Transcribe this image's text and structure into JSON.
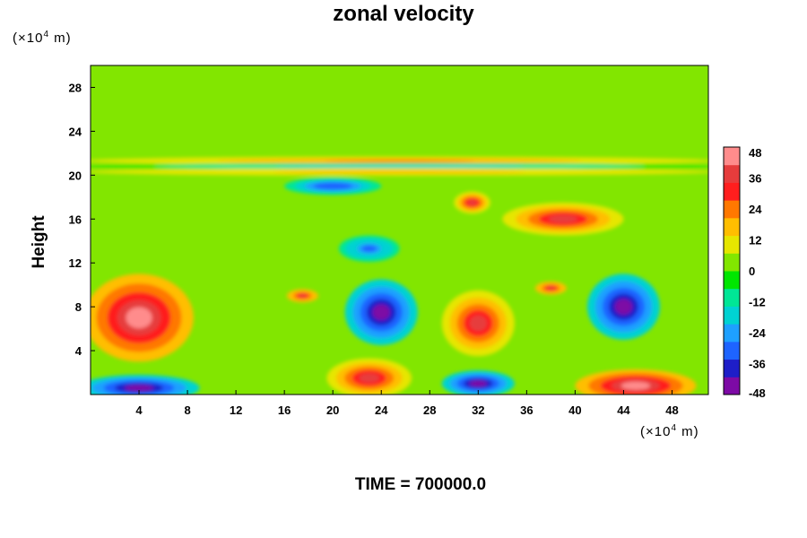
{
  "figure": {
    "title": "zonal velocity",
    "y_unit": {
      "prefix": "(×10",
      "exp": "4",
      "suffix": " m)"
    },
    "x_unit": {
      "prefix": "(×10",
      "exp": "4",
      "suffix": " m)"
    },
    "footer": "TIME = 700000.0"
  },
  "chart_data": {
    "type": "heatmap",
    "title": "zonal velocity",
    "ylabel": "Height",
    "xlabel": "",
    "xlim": [
      0,
      51
    ],
    "ylim": [
      0,
      30
    ],
    "x_ticks": [
      4,
      8,
      12,
      16,
      20,
      24,
      28,
      32,
      36,
      40,
      44,
      48
    ],
    "y_ticks": [
      4,
      8,
      12,
      16,
      20,
      24,
      28
    ],
    "colorbar": {
      "min": -48,
      "max": 48,
      "ticks": [
        48,
        36,
        24,
        12,
        0,
        -12,
        -24,
        -36,
        -48
      ],
      "colors": [
        "#7d0aa5",
        "#1e1ec8",
        "#1e64ff",
        "#1ea0ff",
        "#00d2d2",
        "#00e696",
        "#00e600",
        "#82e600",
        "#e6e600",
        "#ffbe00",
        "#ff7800",
        "#ff1e1e",
        "#e63c3c",
        "#ff8c8c"
      ]
    },
    "background_value": 0,
    "features": [
      {
        "label": "westerly upper band",
        "x": 25.5,
        "y": 21.3,
        "rx": 26,
        "ry": 0.4,
        "value": 22
      },
      {
        "label": "easterly band",
        "x": 25.5,
        "y": 20.8,
        "rx": 26,
        "ry": 0.3,
        "value": -18
      },
      {
        "label": "westerly band",
        "x": 25.5,
        "y": 20.3,
        "rx": 26,
        "ry": 0.35,
        "value": 20
      },
      {
        "label": "jet upper",
        "x": 39,
        "y": 16,
        "rx": 5,
        "ry": 1.5,
        "value": 38
      },
      {
        "label": "jet core",
        "x": 31.5,
        "y": 17.5,
        "rx": 1.5,
        "ry": 1,
        "value": 36
      },
      {
        "label": "easterly upper",
        "x": 20,
        "y": 19,
        "rx": 4,
        "ry": 0.8,
        "value": -34
      },
      {
        "label": "easterly mid",
        "x": 23,
        "y": 13.3,
        "rx": 2.5,
        "ry": 1.2,
        "value": -30
      },
      {
        "label": "westerly left",
        "x": 4,
        "y": 7,
        "rx": 4.5,
        "ry": 4,
        "value": 44
      },
      {
        "label": "easterly eddy",
        "x": 24,
        "y": 7.5,
        "rx": 3,
        "ry": 3,
        "value": -46
      },
      {
        "label": "westerly eddy",
        "x": 32,
        "y": 6.5,
        "rx": 3,
        "ry": 3,
        "value": 38
      },
      {
        "label": "easterly right",
        "x": 44,
        "y": 8,
        "rx": 3,
        "ry": 3,
        "value": -44
      },
      {
        "label": "westerly small",
        "x": 38,
        "y": 9.7,
        "rx": 1.3,
        "ry": 0.6,
        "value": 40
      },
      {
        "label": "westerly small 2",
        "x": 17.5,
        "y": 9,
        "rx": 1.3,
        "ry": 0.6,
        "value": 40
      },
      {
        "label": "surface easterly left",
        "x": 4,
        "y": 0.6,
        "rx": 5,
        "ry": 1.2,
        "value": -48
      },
      {
        "label": "surface westerly",
        "x": 23,
        "y": 1.5,
        "rx": 3.5,
        "ry": 1.8,
        "value": 36
      },
      {
        "label": "surface easterly",
        "x": 32,
        "y": 1,
        "rx": 3,
        "ry": 1.2,
        "value": -48
      },
      {
        "label": "surface westerly right",
        "x": 45,
        "y": 0.8,
        "rx": 5,
        "ry": 1.5,
        "value": 48
      }
    ]
  }
}
